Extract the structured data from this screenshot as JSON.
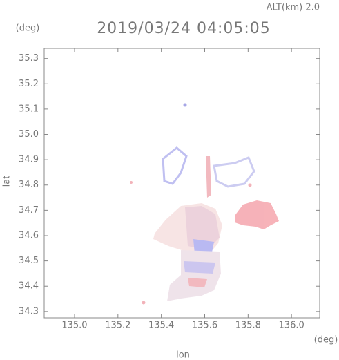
{
  "chart_data": {
    "type": "map",
    "title": "2019/03/24 04:05:05",
    "subtitle": "ALT(km) 2.0",
    "y_unit": "(deg)",
    "x_unit": "(deg)",
    "x_label": "lon",
    "y_label": "lat",
    "xlim": [
      134.86,
      136.13
    ],
    "ylim": [
      34.275,
      35.34
    ],
    "xticks": [
      {
        "value": 135,
        "label": "135.0"
      },
      135.2,
      135.4,
      135.6,
      135.8,
      {
        "value": 136,
        "label": "136.0"
      }
    ],
    "yticks": [
      34.3,
      34.4,
      34.5,
      34.6,
      34.7,
      34.8,
      34.9,
      {
        "value": 35,
        "label": "35.0"
      },
      35.1,
      35.2,
      35.3
    ]
  }
}
